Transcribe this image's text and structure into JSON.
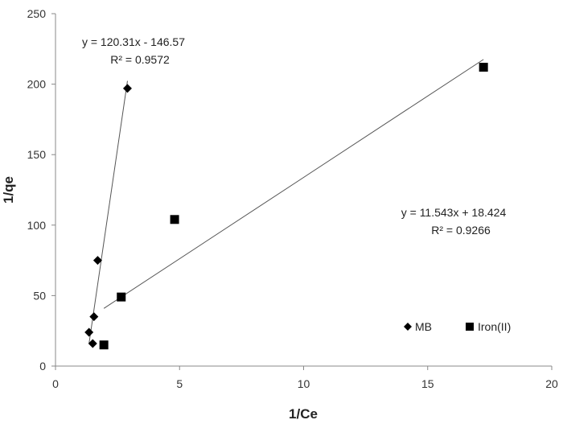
{
  "chart_data": {
    "type": "scatter",
    "xlabel": "1/Ce",
    "ylabel": "1/qe",
    "xlim": [
      0,
      20
    ],
    "ylim": [
      0,
      250
    ],
    "xticks": [
      "0",
      "5",
      "10",
      "15",
      "20"
    ],
    "yticks": [
      "0",
      "50",
      "100",
      "150",
      "200",
      "250"
    ],
    "grid": false,
    "legend_position": "bottom-right",
    "series": [
      {
        "name": "MB",
        "marker": "diamond",
        "color": "#000000",
        "points": [
          [
            1.35,
            24
          ],
          [
            1.5,
            16
          ],
          [
            1.55,
            35
          ],
          [
            1.7,
            75
          ],
          [
            2.9,
            197
          ]
        ],
        "trendline": {
          "slope": 120.31,
          "intercept": -146.57,
          "x_range": [
            1.35,
            2.9
          ]
        },
        "equation": "y = 120.31x - 146.57",
        "r2": "R² = 0.9572"
      },
      {
        "name": "Iron(II)",
        "marker": "square",
        "color": "#000000",
        "points": [
          [
            1.95,
            15
          ],
          [
            2.65,
            49
          ],
          [
            4.8,
            104
          ],
          [
            17.25,
            212
          ]
        ],
        "trendline": {
          "slope": 11.543,
          "intercept": 18.424,
          "x_range": [
            1.95,
            17.25
          ]
        },
        "equation": "y = 11.543x + 18.424",
        "r2": "R² = 0.9266"
      }
    ]
  }
}
